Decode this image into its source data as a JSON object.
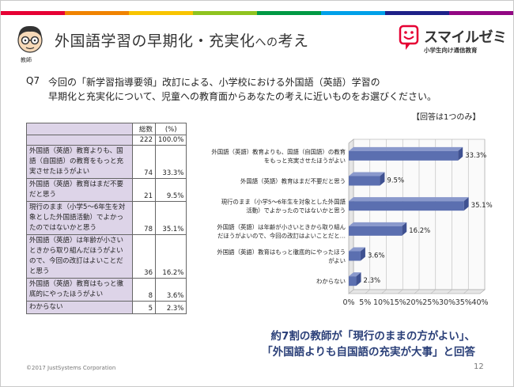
{
  "brand_colors": [
    "#e60033",
    "#f08300",
    "#f8c400",
    "#8fc31f",
    "#009944",
    "#00a0e9",
    "#1d2088",
    "#920783"
  ],
  "header": {
    "avatar_label": "教師",
    "title_main": "外国語学習の早期化・充実化",
    "title_small": "への",
    "title_end": "考え",
    "logo_name": "スマイルゼミ",
    "logo_sub": "小学生向け通信教育"
  },
  "question": {
    "number": "Q7",
    "line1": "今回の「新学習指導要領」改訂による、小学校における外国語（英語）学習の",
    "line2": "早期化と充実化について、児童への教育面からあなたの考えに近いものをお選びください。",
    "note": "【回答は1つのみ】"
  },
  "table": {
    "header": {
      "count": "総数",
      "pct": "(%)"
    },
    "total": {
      "count": "222",
      "pct": "100.0%"
    },
    "rows": [
      {
        "label": "外国語（英語）教育よりも、国語（自国語）の教育をもっと充実させたほうがよい",
        "count": "74",
        "pct": "33.3%"
      },
      {
        "label": "外国語（英語）教育はまだ不要だと思う",
        "count": "21",
        "pct": "9.5%"
      },
      {
        "label": "現行のまま（小学5～6年生を対象とした外国語活動）でよかったのではないかと思う",
        "count": "78",
        "pct": "35.1%"
      },
      {
        "label": "外国語（英語）は年齢が小さいときから取り組んだほうがよいので、今回の改訂はよいことだと思う",
        "count": "36",
        "pct": "16.2%"
      },
      {
        "label": "外国語（英語）教育はもっと徹底的にやったほうがよい",
        "count": "8",
        "pct": "3.6%"
      },
      {
        "label": "わからない",
        "count": "5",
        "pct": "2.3%"
      }
    ]
  },
  "chart_data": {
    "type": "bar",
    "orientation": "horizontal",
    "categories": [
      [
        "外国語（英語）教育よりも、国語（自国語）の教育",
        "をもっと充実させたほうがよい"
      ],
      [
        "外国語（英語）教育はまだ不要だと思う"
      ],
      [
        "現行のまま（小学5～6年生を対象とした外国語",
        "活動）でよかったのではないかと思う"
      ],
      [
        "外国語（英語）は年齢が小さいときから取り組ん",
        "だほうがよいので、今回の改訂はよいことだと…"
      ],
      [
        "外国語（英語）教育はもっと徹底的にやったほう",
        "がよい"
      ],
      [
        "わからない"
      ]
    ],
    "values": [
      33.3,
      9.5,
      35.1,
      16.2,
      3.6,
      2.3
    ],
    "value_labels": [
      "33.3%",
      "9.5%",
      "35.1%",
      "16.2%",
      "3.6%",
      "2.3%"
    ],
    "xlim": [
      0,
      40
    ],
    "x_ticks": [
      "0%",
      "5%",
      "10%",
      "15%",
      "20%",
      "25%",
      "30%",
      "35%",
      "40%"
    ],
    "bar_color": "#5b6fb0",
    "grid": true
  },
  "conclusion": {
    "line1": "約7割の教師が「現行のままの方がよい」、",
    "line2": "「外国語よりも自国語の充実が大事」と回答"
  },
  "footer": {
    "copyright": "©2017  JustSystems Corporation",
    "page": "12"
  }
}
